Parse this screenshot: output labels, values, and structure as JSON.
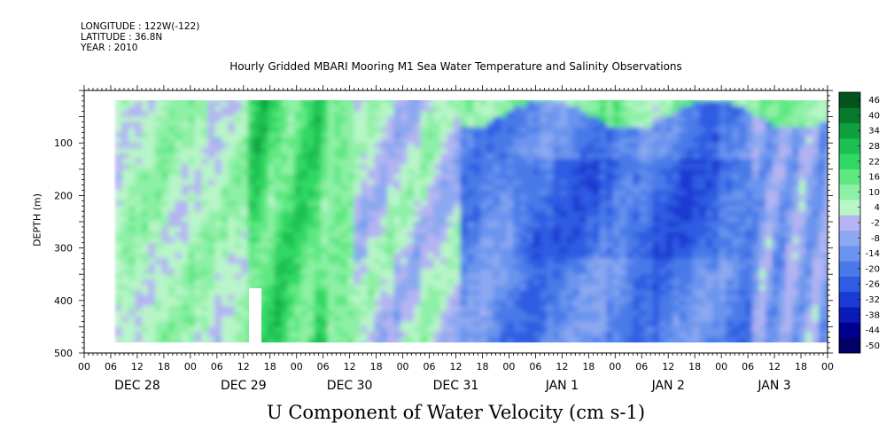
{
  "header": {
    "longitude": "LONGITUDE : 122W(-122)",
    "latitude": "LATITUDE : 36.8N",
    "year": "YEAR : 2010"
  },
  "chart_data": {
    "type": "heatmap",
    "title": "U Component of Water Velocity (cm s-1)",
    "subtitle": "Hourly Gridded MBARI Mooring M1 Sea Water Temperature and Salinity Observations",
    "xlabel": "",
    "ylabel": "DEPTH (m)",
    "x_hour_ticks": [
      "00",
      "06",
      "12",
      "18",
      "00",
      "06",
      "12",
      "18",
      "00",
      "06",
      "12",
      "18",
      "00",
      "06",
      "12",
      "18",
      "00",
      "06",
      "12",
      "18",
      "00",
      "06",
      "12",
      "18",
      "00",
      "06",
      "12",
      "18",
      "00"
    ],
    "x_day_labels": [
      "DEC 28",
      "DEC 29",
      "DEC 30",
      "DEC 31",
      "JAN  1",
      "JAN  2",
      "JAN  3"
    ],
    "xlim_hours": [
      0,
      168
    ],
    "data_start_hour": 7,
    "y_ticks": [
      100,
      200,
      300,
      400,
      500
    ],
    "ylim": [
      500,
      0
    ],
    "data_depth_range": [
      10,
      480
    ],
    "colorbar": {
      "levels": [
        -50,
        -44,
        -38,
        -32,
        -26,
        -20,
        -14,
        -8,
        -2,
        4,
        10,
        16,
        22,
        28,
        34,
        40,
        46
      ],
      "labels": [
        "46",
        "40",
        "34",
        "28",
        "22",
        "16",
        "10",
        "4",
        "-2",
        "-8",
        "-14",
        "-20",
        "-26",
        "-32",
        "-38",
        "-44",
        "-50"
      ],
      "colors_low_to_high": [
        "#000066",
        "#00008f",
        "#0a1ab4",
        "#1a3ad2",
        "#2e5ce2",
        "#4a7ae8",
        "#6a94ee",
        "#8ca8f0",
        "#b4b4f2",
        "#b8f5c8",
        "#8ef0a6",
        "#5ee882",
        "#30d864",
        "#1cc052",
        "#10a040",
        "#087a2c",
        "#04521c"
      ]
    },
    "regions": [
      {
        "pattern": "positive",
        "x_hours": [
          7,
          60
        ],
        "value_range": [
          4,
          22
        ]
      },
      {
        "pattern": "strong-positive",
        "x_hours": [
          36,
          54
        ],
        "value_range": [
          22,
          40
        ]
      },
      {
        "pattern": "mixed-weak",
        "x_hours": [
          60,
          84
        ],
        "value_range": [
          -8,
          16
        ]
      },
      {
        "pattern": "negative",
        "x_hours": [
          84,
          160
        ],
        "depth_range": [
          80,
          480
        ],
        "value_range": [
          -26,
          -2
        ]
      },
      {
        "pattern": "positive-surface",
        "x_hours": [
          84,
          168
        ],
        "depth_range": [
          10,
          80
        ],
        "value_range": [
          4,
          28
        ]
      }
    ]
  }
}
